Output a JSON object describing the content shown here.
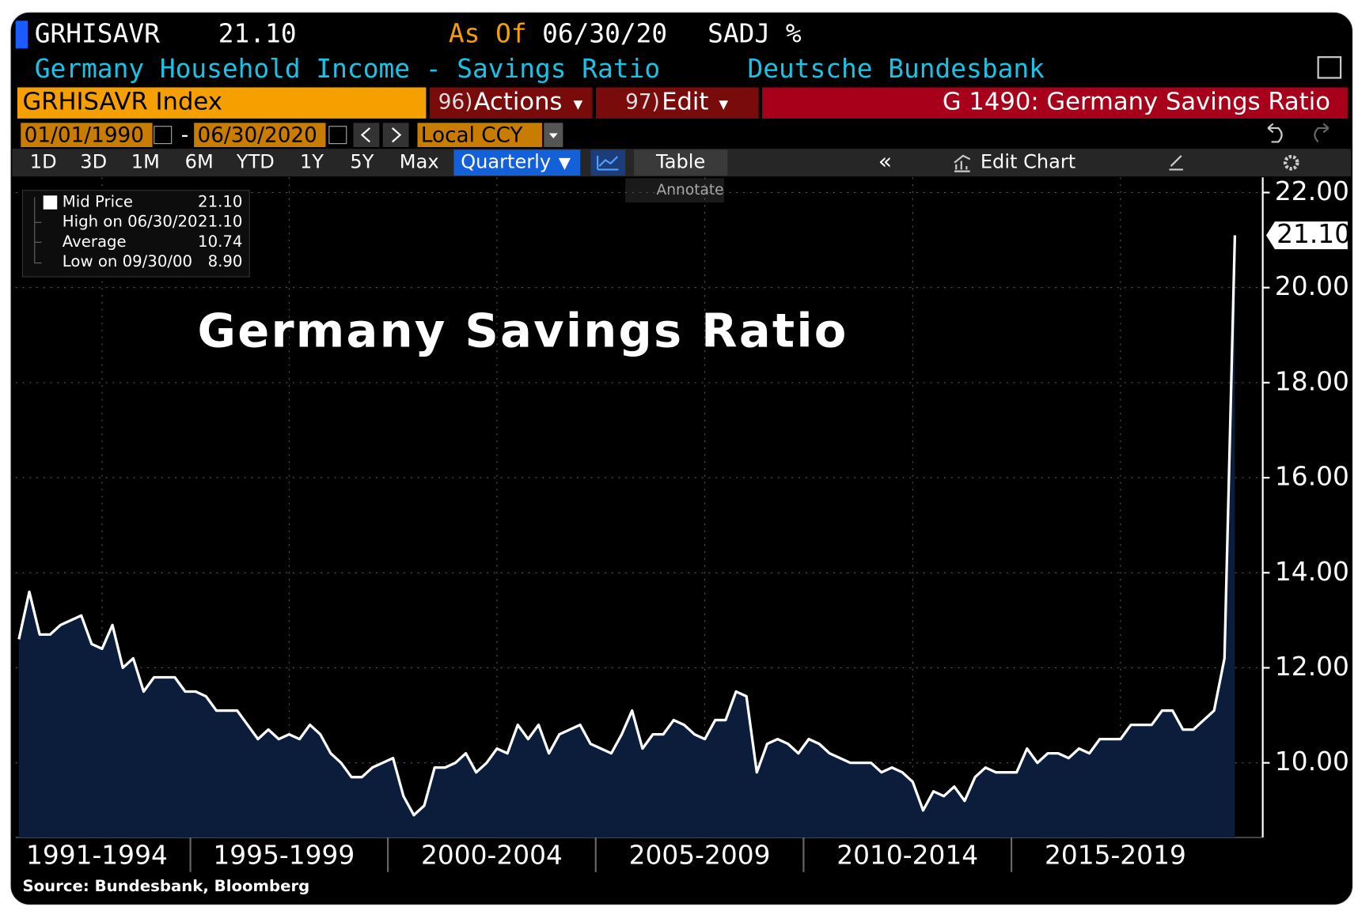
{
  "header": {
    "ticker": "GRHISAVR",
    "price": "21.10",
    "as_of_label": "As Of",
    "as_of_date": "06/30/20",
    "adjustment": "SADJ %",
    "description": "Germany Household Income - Savings Ratio",
    "source_name": "Deutsche Bundesbank"
  },
  "toolbar": {
    "security": "GRHISAVR Index",
    "actions_number": "96)",
    "actions": "Actions",
    "edit_number": "97)",
    "edit": "Edit",
    "page_title": "G 1490: Germany Savings Ratio",
    "start_date": "01/01/1990",
    "date_separator": "-",
    "end_date": "06/30/2020",
    "currency": "Local CCY",
    "periods": [
      "1D",
      "3D",
      "1M",
      "6M",
      "YTD",
      "1Y",
      "5Y",
      "Max"
    ],
    "frequency": "Quarterly",
    "table": "Table",
    "edit_chart": "Edit Chart",
    "annotate": "Annotate"
  },
  "legend": {
    "mid_price": "21.10",
    "rows": [
      [
        "High on 06/30/20",
        "21.10"
      ],
      [
        "Average",
        "10.74"
      ],
      [
        "Low on 09/30/00",
        "8.90"
      ]
    ]
  },
  "chart_data": {
    "type": "area",
    "title": "Germany Savings Ratio",
    "x": [
      1991,
      1991.25,
      1991.5,
      1991.75,
      1992,
      1992.25,
      1992.5,
      1992.75,
      1993,
      1993.25,
      1993.5,
      1993.75,
      1994,
      1994.25,
      1994.5,
      1994.75,
      1995,
      1995.25,
      1995.5,
      1995.75,
      1996,
      1996.25,
      1996.5,
      1996.75,
      1997,
      1997.25,
      1997.5,
      1997.75,
      1998,
      1998.25,
      1998.5,
      1998.75,
      1999,
      1999.25,
      1999.5,
      1999.75,
      2000,
      2000.25,
      2000.5,
      2000.75,
      2001,
      2001.25,
      2001.5,
      2001.75,
      2002,
      2002.25,
      2002.5,
      2002.75,
      2003,
      2003.25,
      2003.5,
      2003.75,
      2004,
      2004.25,
      2004.5,
      2004.75,
      2005,
      2005.25,
      2005.5,
      2005.75,
      2006,
      2006.25,
      2006.5,
      2006.75,
      2007,
      2007.25,
      2007.5,
      2007.75,
      2008,
      2008.25,
      2008.5,
      2008.75,
      2009,
      2009.25,
      2009.5,
      2009.75,
      2010,
      2010.25,
      2010.5,
      2010.75,
      2011,
      2011.25,
      2011.5,
      2011.75,
      2012,
      2012.25,
      2012.5,
      2012.75,
      2013,
      2013.25,
      2013.5,
      2013.75,
      2014,
      2014.25,
      2014.5,
      2014.75,
      2015,
      2015.25,
      2015.5,
      2015.75,
      2016,
      2016.25,
      2016.5,
      2016.75,
      2017,
      2017.25,
      2017.5,
      2017.75,
      2018,
      2018.25,
      2018.5,
      2018.75,
      2019,
      2019.25,
      2019.5,
      2019.75,
      2020,
      2020.25
    ],
    "series": [
      {
        "name": "Mid Price",
        "color": "#ffffff",
        "fill": "#0b1d3a",
        "values": [
          12.6,
          13.6,
          12.7,
          12.7,
          12.9,
          13.0,
          13.1,
          12.5,
          12.4,
          12.9,
          12.0,
          12.2,
          11.5,
          11.8,
          11.8,
          11.8,
          11.5,
          11.5,
          11.4,
          11.1,
          11.1,
          11.1,
          10.8,
          10.5,
          10.7,
          10.5,
          10.6,
          10.5,
          10.8,
          10.6,
          10.2,
          10.0,
          9.7,
          9.7,
          9.9,
          10.0,
          10.1,
          9.3,
          8.9,
          9.1,
          9.9,
          9.9,
          10.0,
          10.2,
          9.8,
          10.0,
          10.3,
          10.2,
          10.8,
          10.5,
          10.8,
          10.2,
          10.6,
          10.7,
          10.8,
          10.4,
          10.3,
          10.2,
          10.6,
          11.1,
          10.3,
          10.6,
          10.6,
          10.9,
          10.8,
          10.6,
          10.5,
          10.9,
          10.9,
          11.5,
          11.4,
          9.8,
          10.4,
          10.5,
          10.4,
          10.2,
          10.5,
          10.4,
          10.2,
          10.1,
          10.0,
          10.0,
          10.0,
          9.8,
          9.9,
          9.8,
          9.6,
          9.0,
          9.4,
          9.3,
          9.5,
          9.2,
          9.7,
          9.9,
          9.8,
          9.8,
          9.8,
          10.3,
          10.0,
          10.2,
          10.2,
          10.1,
          10.3,
          10.2,
          10.5,
          10.5,
          10.5,
          10.8,
          10.8,
          10.8,
          11.1,
          11.1,
          10.7,
          10.7,
          10.9,
          11.1,
          12.2,
          21.1
        ]
      }
    ],
    "xlim": [
      1990.92,
      2020.92
    ],
    "xticks": [
      {
        "value": 1993,
        "label": "1991-1994"
      },
      {
        "value": 1997.5,
        "label": "1995-1999"
      },
      {
        "value": 2002.5,
        "label": "2000-2004"
      },
      {
        "value": 2007.5,
        "label": "2005-2009"
      },
      {
        "value": 2012.5,
        "label": "2010-2014"
      },
      {
        "value": 2017.5,
        "label": "2015-2019"
      }
    ],
    "ylim": [
      8.43,
      22.32
    ],
    "yticks": [
      {
        "value": 10,
        "label": "10.00"
      },
      {
        "value": 12,
        "label": "12.00"
      },
      {
        "value": 14,
        "label": "14.00"
      },
      {
        "value": 16,
        "label": "16.00"
      },
      {
        "value": 18,
        "label": "18.00"
      },
      {
        "value": 20,
        "label": "20.00"
      },
      {
        "value": 22,
        "label": "22.00"
      }
    ],
    "grid": true,
    "y_axis_side": "right"
  },
  "footer": {
    "source": "Source: Bundesbank, Bloomberg"
  }
}
